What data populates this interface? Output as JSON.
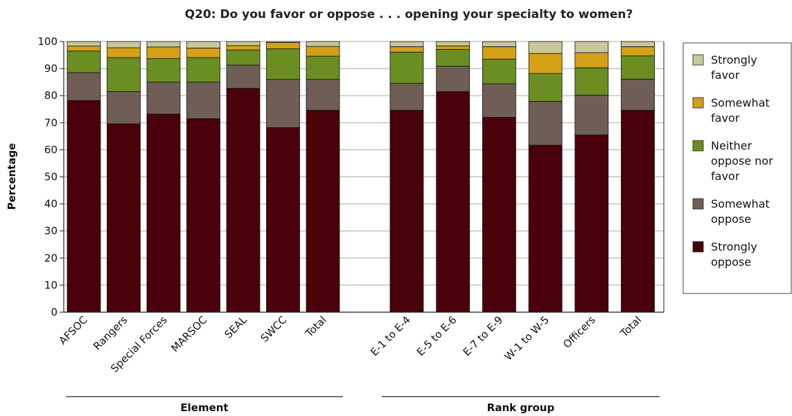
{
  "chart_data": {
    "type": "bar",
    "stacked": true,
    "title": "Q20: Do you favor or oppose . . . opening your specialty to women?",
    "ylabel": "Percentage",
    "ylim": [
      0,
      100
    ],
    "yticks": [
      0,
      10,
      20,
      30,
      40,
      50,
      60,
      70,
      80,
      90,
      100
    ],
    "grid": true,
    "legend_position": "right",
    "groups": [
      {
        "label": "Element",
        "categories": [
          "AFSOC",
          "Rangers",
          "Special Forces",
          "MARSOC",
          "SEAL",
          "SWCC",
          "Total"
        ]
      },
      {
        "label": "Rank group",
        "categories": [
          "E-1 to E-4",
          "E-5 to E-6",
          "E-7 to E-9",
          "W-1 to W-5",
          "Officers",
          "Total"
        ]
      }
    ],
    "categories": [
      "AFSOC",
      "Rangers",
      "Special Forces",
      "MARSOC",
      "SEAL",
      "SWCC",
      "Total",
      "E-1 to E-4",
      "E-5 to E-6",
      "E-7 to E-9",
      "W-1 to W-5",
      "Officers",
      "Total"
    ],
    "series": [
      {
        "name": "Strongly oppose",
        "color": "#4a0008",
        "values": [
          78.2,
          69.6,
          73.2,
          71.5,
          82.7,
          68.2,
          74.6,
          74.6,
          81.5,
          72.0,
          61.7,
          65.5,
          74.6
        ]
      },
      {
        "name": "Somewhat oppose",
        "color": "#6e5e55",
        "values": [
          10.3,
          11.9,
          11.8,
          13.5,
          8.6,
          17.8,
          11.4,
          10.0,
          9.4,
          12.4,
          16.2,
          14.7,
          11.5
        ]
      },
      {
        "name": "Neither oppose nor favor",
        "color": "#6b8e23",
        "values": [
          8.0,
          12.6,
          8.7,
          9.1,
          5.6,
          11.3,
          8.6,
          11.5,
          6.2,
          9.1,
          10.3,
          10.1,
          8.6
        ]
      },
      {
        "name": "Somewhat favor",
        "color": "#d4a017",
        "values": [
          1.8,
          3.6,
          4.3,
          3.5,
          1.6,
          2.3,
          3.6,
          2.0,
          1.3,
          4.6,
          7.4,
          5.6,
          3.4
        ]
      },
      {
        "name": "Strongly favor",
        "color": "#c7c79a",
        "values": [
          1.7,
          2.3,
          2.0,
          2.4,
          1.5,
          0.4,
          1.8,
          1.9,
          1.6,
          1.9,
          4.4,
          4.1,
          1.9
        ]
      }
    ],
    "legend_labels": [
      {
        "series": "Strongly favor",
        "lines": [
          "Strongly",
          "favor"
        ]
      },
      {
        "series": "Somewhat favor",
        "lines": [
          "Somewhat",
          "favor"
        ]
      },
      {
        "series": "Neither oppose nor favor",
        "lines": [
          "Neither",
          "oppose nor",
          "favor"
        ]
      },
      {
        "series": "Somewhat oppose",
        "lines": [
          "Somewhat",
          "oppose"
        ]
      },
      {
        "series": "Strongly oppose",
        "lines": [
          "Strongly",
          "oppose"
        ]
      }
    ]
  }
}
